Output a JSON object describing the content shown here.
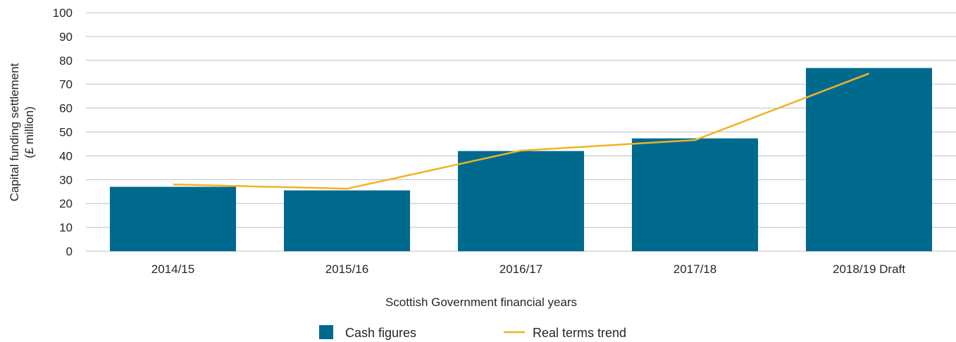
{
  "chart_data": {
    "type": "bar",
    "categories": [
      "2014/15",
      "2015/16",
      "2016/17",
      "2017/18",
      "2018/19 Draft"
    ],
    "series": [
      {
        "name": "Cash figures",
        "type": "bar",
        "values": [
          27,
          25.5,
          42,
          47.3,
          76.8
        ],
        "color": "#006a8e"
      },
      {
        "name": "Real terms trend",
        "type": "line",
        "values": [
          28,
          26.2,
          42.2,
          46.6,
          74.5
        ],
        "color": "#f0b323"
      }
    ],
    "xlabel": "Scottish Government financial years",
    "ylabel": [
      "Capital funding settlement",
      "(£ million)"
    ],
    "ylim": [
      0,
      100
    ],
    "yticks": [
      0,
      10,
      20,
      30,
      40,
      50,
      60,
      70,
      80,
      90,
      100
    ],
    "grid": true,
    "legend_position": "bottom",
    "gridline_color": "#bfbfbf"
  }
}
